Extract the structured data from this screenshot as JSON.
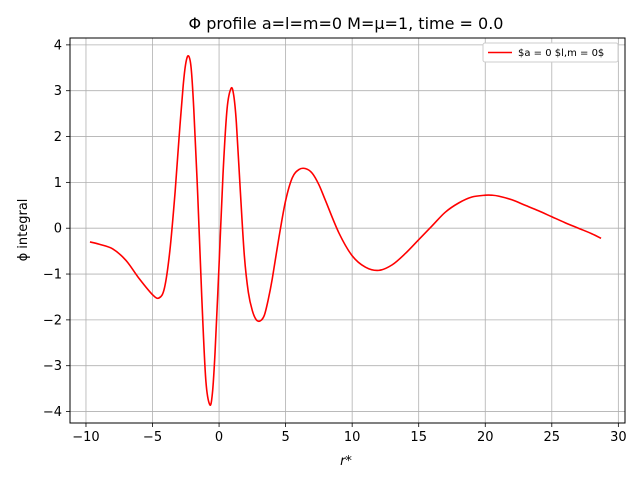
{
  "chart_data": {
    "type": "line",
    "title": "Φ profile a=l=m=0 M=μ=1, time = 0.0",
    "xlabel": "r*",
    "ylabel": "ϕ integral",
    "xlim": [
      -11.2,
      30.5
    ],
    "ylim": [
      -4.25,
      4.15
    ],
    "grid": true,
    "legend_position": "top-right",
    "x_ticks": [
      -10,
      -5,
      0,
      5,
      10,
      15,
      20,
      25,
      30
    ],
    "x_tick_labels": [
      "−10",
      "−5",
      "0",
      "5",
      "10",
      "15",
      "20",
      "25",
      "30"
    ],
    "y_ticks": [
      -4,
      -3,
      -2,
      -1,
      0,
      1,
      2,
      3,
      4
    ],
    "y_tick_labels": [
      "−4",
      "−3",
      "−2",
      "−1",
      "0",
      "1",
      "2",
      "3",
      "4"
    ],
    "series": [
      {
        "name": "$a = 0 $l,m = 0$",
        "color": "#ff0000",
        "x": [
          -9.7,
          -9.0,
          -8.0,
          -7.0,
          -6.0,
          -5.0,
          -4.5,
          -4.1,
          -3.7,
          -3.3,
          -3.0,
          -2.7,
          -2.5,
          -2.3,
          -2.1,
          -1.9,
          -1.6,
          -1.3,
          -1.0,
          -0.7,
          -0.5,
          -0.3,
          0.0,
          0.3,
          0.6,
          0.9,
          1.1,
          1.3,
          1.6,
          1.9,
          2.2,
          2.5,
          2.8,
          3.1,
          3.4,
          3.7,
          4.0,
          4.5,
          5.0,
          5.5,
          6.0,
          6.5,
          7.0,
          7.5,
          8.0,
          9.0,
          10.0,
          11.0,
          12.0,
          13.0,
          14.0,
          15.0,
          16.0,
          17.0,
          18.0,
          19.0,
          20.0,
          20.5,
          21.0,
          22.0,
          23.0,
          24.0,
          25.0,
          26.0,
          27.0,
          28.0,
          28.7
        ],
        "y": [
          -0.3,
          -0.35,
          -0.45,
          -0.7,
          -1.1,
          -1.45,
          -1.52,
          -1.3,
          -0.5,
          0.8,
          2.0,
          3.1,
          3.6,
          3.76,
          3.5,
          2.6,
          0.7,
          -1.5,
          -3.3,
          -3.85,
          -3.6,
          -2.7,
          -0.8,
          1.2,
          2.6,
          3.05,
          2.9,
          2.3,
          0.8,
          -0.6,
          -1.4,
          -1.8,
          -2.0,
          -2.02,
          -1.9,
          -1.55,
          -1.1,
          -0.2,
          0.6,
          1.1,
          1.28,
          1.3,
          1.2,
          0.95,
          0.6,
          -0.1,
          -0.6,
          -0.85,
          -0.92,
          -0.8,
          -0.55,
          -0.25,
          0.05,
          0.35,
          0.55,
          0.68,
          0.72,
          0.72,
          0.7,
          0.62,
          0.5,
          0.38,
          0.25,
          0.12,
          0.0,
          -0.12,
          -0.22
        ]
      }
    ]
  }
}
